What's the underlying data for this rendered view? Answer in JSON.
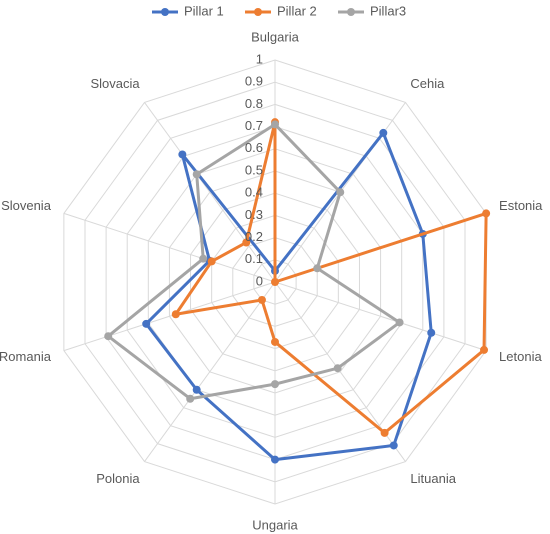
{
  "chart_data": {
    "type": "radar",
    "categories": [
      "Bulgaria",
      "Cehia",
      "Estonia",
      "Letonia",
      "Lituania",
      "Ungaria",
      "Polonia",
      "Romania",
      "Slovenia",
      "Slovacia"
    ],
    "series": [
      {
        "name": "Pillar 1",
        "color": "#4472c4",
        "values": [
          0.05,
          0.83,
          0.7,
          0.74,
          0.91,
          0.8,
          0.6,
          0.61,
          0.31,
          0.71
        ]
      },
      {
        "name": "Pillar 2",
        "color": "#ed7d31",
        "values": [
          0.72,
          0,
          1,
          0.99,
          0.84,
          0.27,
          0.1,
          0.47,
          0.3,
          0.22
        ]
      },
      {
        "name": "Pillar3",
        "color": "#a5a5a5",
        "values": [
          0.71,
          0.5,
          0.2,
          0.59,
          0.48,
          0.46,
          0.65,
          0.79,
          0.34,
          0.6
        ]
      }
    ],
    "ylim": [
      0,
      1
    ],
    "yticks": [
      0,
      0.1,
      0.2,
      0.3,
      0.4,
      0.5,
      0.6,
      0.7,
      0.8,
      0.9,
      1
    ],
    "grid": true,
    "legend": "top"
  }
}
